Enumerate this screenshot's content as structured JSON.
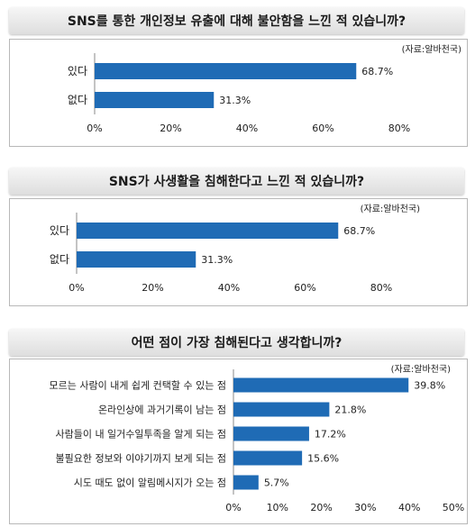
{
  "chart_data": [
    {
      "type": "bar",
      "orientation": "horizontal",
      "title": "SNS를 통한 개인정보 유출에 대해 불안함을 느낀 적 있습니까?",
      "source": "(자료:알바천국)",
      "categories": [
        "있다",
        "없다"
      ],
      "values": [
        68.7,
        31.3
      ],
      "value_labels": [
        "68.7%",
        "31.3%"
      ],
      "xlim": [
        0,
        80
      ],
      "ticks": [
        "0%",
        "20%",
        "40%",
        "60%",
        "80%"
      ],
      "color": "#1f6bb5"
    },
    {
      "type": "bar",
      "orientation": "horizontal",
      "title": "SNS가 사생활을 침해한다고 느낀 적 있습니까?",
      "source": "(자료:알바천국)",
      "categories": [
        "있다",
        "없다"
      ],
      "values": [
        68.7,
        31.3
      ],
      "value_labels": [
        "68.7%",
        "31.3%"
      ],
      "xlim": [
        0,
        80
      ],
      "ticks": [
        "0%",
        "20%",
        "40%",
        "60%",
        "80%"
      ],
      "color": "#1f6bb5"
    },
    {
      "type": "bar",
      "orientation": "horizontal",
      "title": "어떤 점이 가장 침해된다고 생각합니까?",
      "source": "(자료:알바천국)",
      "categories": [
        "모르는 사람이 내게 쉽게 컨택할 수 있는 점",
        "온라인상에 과거기록이 남는 점",
        "사람들이 내 일거수일투족을 알게 되는 점",
        "불필요한 정보와 이야기까지 보게 되는 점",
        "시도 때도 없이 알림메시지가 오는 점"
      ],
      "values": [
        39.8,
        21.8,
        17.2,
        15.6,
        5.7
      ],
      "value_labels": [
        "39.8%",
        "21.8%",
        "17.2%",
        "15.6%",
        "5.7%"
      ],
      "xlim": [
        0,
        50
      ],
      "ticks": [
        "0%",
        "10%",
        "20%",
        "30%",
        "40%",
        "50%"
      ],
      "color": "#1f6bb5"
    }
  ]
}
